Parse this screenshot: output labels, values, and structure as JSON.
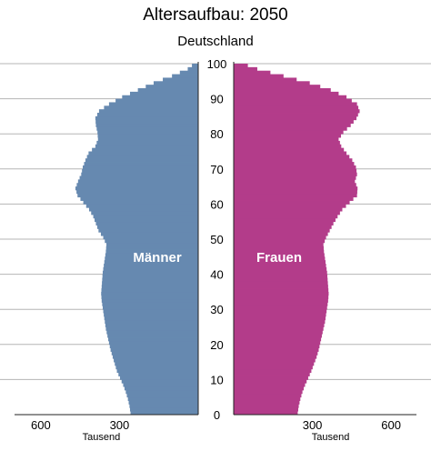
{
  "chart_data": {
    "type": "bar",
    "title": "Altersaufbau: 2050",
    "subtitle": "Deutschland",
    "orientation": "horizontal-pyramid",
    "y_ticks": [
      "0",
      "10",
      "20",
      "30",
      "40",
      "50",
      "60",
      "70",
      "80",
      "90",
      "100"
    ],
    "x_ticks_left": [
      "600",
      "300"
    ],
    "x_ticks_right": [
      "300",
      "600"
    ],
    "x_unit_label_left": "Tausend",
    "x_unit_label_right": "Tausend",
    "xlim": [
      0,
      700
    ],
    "ylim": [
      0,
      100
    ],
    "grid": true,
    "colors": {
      "maenner": "#6689b0",
      "frauen": "#b33c8a"
    },
    "series": [
      {
        "name": "Männer",
        "ages": [
          0,
          2,
          4,
          6,
          8,
          10,
          12,
          14,
          16,
          18,
          20,
          22,
          24,
          26,
          28,
          30,
          32,
          34,
          36,
          38,
          40,
          42,
          44,
          46,
          48,
          50,
          52,
          54,
          56,
          58,
          60,
          62,
          64,
          66,
          68,
          70,
          72,
          74,
          76,
          78,
          80,
          82,
          84,
          86,
          88,
          90,
          92,
          94,
          96,
          98,
          100
        ],
        "values": [
          258,
          262,
          268,
          276,
          286,
          298,
          310,
          318,
          326,
          334,
          340,
          346,
          352,
          356,
          360,
          364,
          368,
          370,
          368,
          366,
          364,
          360,
          356,
          352,
          350,
          362,
          380,
          390,
          400,
          416,
          438,
          460,
          468,
          458,
          446,
          440,
          430,
          418,
          392,
          382,
          384,
          390,
          392,
          378,
          340,
          290,
          230,
          170,
          100,
          40,
          8
        ]
      },
      {
        "name": "Frauen",
        "ages": [
          0,
          2,
          4,
          6,
          8,
          10,
          12,
          14,
          16,
          18,
          20,
          22,
          24,
          26,
          28,
          30,
          32,
          34,
          36,
          38,
          40,
          42,
          44,
          46,
          48,
          50,
          52,
          54,
          56,
          58,
          60,
          62,
          64,
          66,
          68,
          70,
          72,
          74,
          76,
          78,
          80,
          82,
          84,
          86,
          88,
          90,
          92,
          94,
          96,
          98,
          100
        ],
        "values": [
          244,
          248,
          254,
          262,
          272,
          284,
          296,
          306,
          316,
          324,
          330,
          336,
          342,
          348,
          352,
          356,
          360,
          362,
          360,
          358,
          356,
          352,
          348,
          344,
          342,
          352,
          366,
          380,
          396,
          414,
          442,
          470,
          472,
          462,
          470,
          466,
          452,
          430,
          410,
          400,
          418,
          446,
          468,
          480,
          470,
          430,
          370,
          290,
          190,
          90,
          18
        ]
      }
    ]
  }
}
